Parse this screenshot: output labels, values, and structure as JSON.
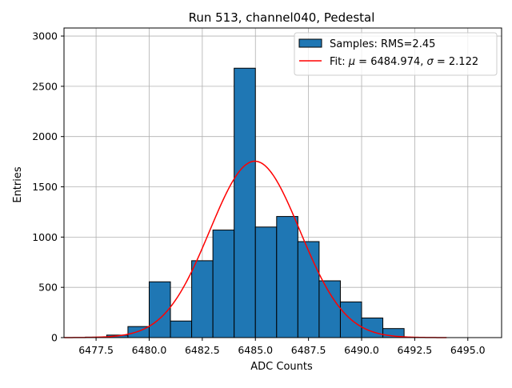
{
  "chart_data": {
    "type": "bar",
    "title": "Run 513, channel040, Pedestal",
    "xlabel": "ADC Counts",
    "ylabel": "Entries",
    "xlim": [
      6475.99,
      6496.59
    ],
    "ylim": [
      0,
      3080
    ],
    "grid": true,
    "legend_position": "top-right",
    "x_ticks": [
      6477.5,
      6480.0,
      6482.5,
      6485.0,
      6487.5,
      6490.0,
      6492.5,
      6495.0
    ],
    "x_tick_labels": [
      "6477.5",
      "6480.0",
      "6482.5",
      "6485.0",
      "6487.5",
      "6490.0",
      "6492.5",
      "6495.0"
    ],
    "y_ticks": [
      0,
      500,
      1000,
      1500,
      2000,
      2500,
      3000
    ],
    "y_tick_labels": [
      "0",
      "500",
      "1000",
      "1500",
      "2000",
      "2500",
      "3000"
    ],
    "histogram": {
      "name": "Samples: RMS=2.45",
      "color": "#1f77b4",
      "edge_color": "#000000",
      "bin_edges": [
        6477.0,
        6478.0,
        6479.0,
        6480.0,
        6481.0,
        6482.0,
        6483.0,
        6484.0,
        6485.0,
        6486.0,
        6487.0,
        6488.0,
        6489.0,
        6490.0,
        6491.0,
        6492.0
      ],
      "counts": [
        5,
        25,
        110,
        555,
        165,
        765,
        1070,
        2680,
        1100,
        1205,
        955,
        565,
        355,
        195,
        90
      ]
    },
    "fit": {
      "name_prefix": "Fit: ",
      "name_mu": "μ",
      "name_mid": " = 6484.974, ",
      "name_sigma": "σ",
      "name_suffix": " = 2.122",
      "color": "#ff0000",
      "mu": 6484.974,
      "sigma": 2.122,
      "amplitude": 1755,
      "x_range": [
        6476.0,
        6494.0
      ]
    }
  }
}
